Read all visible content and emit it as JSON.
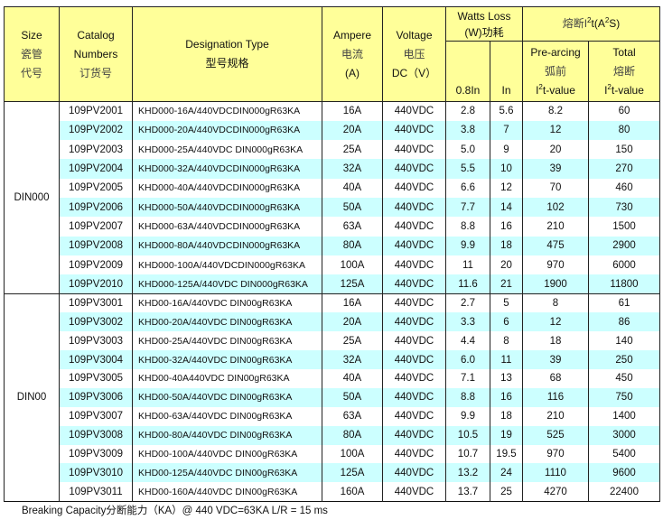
{
  "header": {
    "size": "Size",
    "size_cn1": "瓷管",
    "size_cn2": "代号",
    "catalog": "Catalog",
    "catalog2": "Numbers",
    "catalog_cn": "订货号",
    "designation": "Designation Type",
    "designation_cn": "型号规格",
    "ampere": "Ampere",
    "ampere_cn": "电流",
    "ampere_unit": "(A)",
    "voltage": "Voltage",
    "voltage_cn": "电压",
    "voltage_unit": "DC（V）",
    "watts": "Watts Loss",
    "watts2": "(W)功耗",
    "watts_sub1": "0.8In",
    "watts_sub2": "In",
    "i2t_prefix": "熔断I",
    "i2t_mid": "t(A",
    "i2t_suffix": "S)",
    "prearc": "Pre-arcing",
    "prearc_cn": "弧前",
    "prearc_val": "t-value",
    "total": "Total",
    "total_cn": "熔断",
    "total_val": "t-value",
    "i_letter": "I",
    "sup2": "2"
  },
  "groups": [
    {
      "size": "DIN000",
      "rows": [
        [
          "109PV2001",
          "KHD000-16A/440VDCDIN000gR63KA",
          "16A",
          "440VDC",
          "2.8",
          "5.6",
          "8.2",
          "60"
        ],
        [
          "109PV2002",
          "KHD000-20A/440VDCDIN000gR63KA",
          "20A",
          "440VDC",
          "3.8",
          "7",
          "12",
          "80"
        ],
        [
          "109PV2003",
          "KHD000-25A/440VDC DIN000gR63KA",
          "25A",
          "440VDC",
          "5.0",
          "9",
          "20",
          "150"
        ],
        [
          "109PV2004",
          "KHD000-32A/440VDCDIN000gR63KA",
          "32A",
          "440VDC",
          "5.5",
          "10",
          "39",
          "270"
        ],
        [
          "109PV2005",
          "KHD000-40A/440VDCDIN000gR63KA",
          "40A",
          "440VDC",
          "6.6",
          "12",
          "70",
          "460"
        ],
        [
          "109PV2006",
          "KHD000-50A/440VDCDIN000gR63KA",
          "50A",
          "440VDC",
          "7.7",
          "14",
          "102",
          "730"
        ],
        [
          "109PV2007",
          "KHD000-63A/440VDCDIN000gR63KA",
          "63A",
          "440VDC",
          "8.8",
          "16",
          "210",
          "1500"
        ],
        [
          "109PV2008",
          "KHD000-80A/440VDCDIN000gR63KA",
          "80A",
          "440VDC",
          "9.9",
          "18",
          "475",
          "2900"
        ],
        [
          "109PV2009",
          "KHD000-100A/440VDCDIN000gR63KA",
          "100A",
          "440VDC",
          "11",
          "20",
          "970",
          "6000"
        ],
        [
          "109PV2010",
          "KHD000-125A/440VDC DIN000gR63KA",
          "125A",
          "440VDC",
          "11.6",
          "21",
          "1900",
          "11800"
        ]
      ]
    },
    {
      "size": "DIN00",
      "rows": [
        [
          "109PV3001",
          "KHD00-16A/440VDC DIN00gR63KA",
          "16A",
          "440VDC",
          "2.7",
          "5",
          "8",
          "61"
        ],
        [
          "109PV3002",
          "KHD00-20A/440VDC DIN00gR63KA",
          "20A",
          "440VDC",
          "3.3",
          "6",
          "12",
          "86"
        ],
        [
          "109PV3003",
          "KHD00-25A/440VDC DIN00gR63KA",
          "25A",
          "440VDC",
          "4.4",
          "8",
          "18",
          "140"
        ],
        [
          "109PV3004",
          "KHD00-32A/440VDC DIN00gR63KA",
          "32A",
          "440VDC",
          "6.0",
          "11",
          "39",
          "250"
        ],
        [
          "109PV3005",
          "KHD00-40A440VDC DIN00gR63KA",
          "40A",
          "440VDC",
          "7.1",
          "13",
          "68",
          "450"
        ],
        [
          "109PV3006",
          "KHD00-50A/440VDC DIN00gR63KA",
          "50A",
          "440VDC",
          "8.8",
          "16",
          "116",
          "750"
        ],
        [
          "109PV3007",
          "KHD00-63A/440VDC DIN00gR63KA",
          "63A",
          "440VDC",
          "9.9",
          "18",
          "210",
          "1400"
        ],
        [
          "109PV3008",
          "KHD00-80A/440VDC DIN00gR63KA",
          "80A",
          "440VDC",
          "10.5",
          "19",
          "525",
          "3000"
        ],
        [
          "109PV3009",
          "KHD00-100A/440VDC DIN00gR63KA",
          "100A",
          "440VDC",
          "10.7",
          "19.5",
          "970",
          "5400"
        ],
        [
          "109PV3010",
          "KHD00-125A/440VDC DIN00gR63KA",
          "125A",
          "440VDC",
          "13.2",
          "24",
          "1110",
          "9600"
        ],
        [
          "109PV3011",
          "KHD00-160A/440VDC DIN00gR63KA",
          "160A",
          "440VDC",
          "13.7",
          "25",
          "4270",
          "22400"
        ]
      ]
    }
  ],
  "caption": "Breaking Capacity分断能力（KA）@ 440 VDC=63KA   L/R = 15 ms",
  "colors": {
    "header_bg": "#ffff99",
    "stripe_bg": "#ccffff"
  }
}
